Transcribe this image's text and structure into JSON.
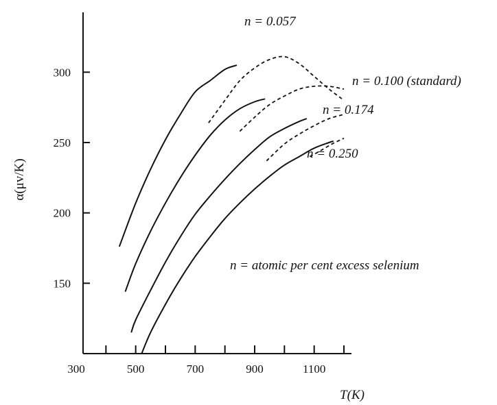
{
  "chart_data": {
    "type": "line",
    "xlabel": "T(K)",
    "ylabel": "α(μv/K)",
    "xlim": [
      300,
      1200
    ],
    "ylim": [
      100,
      325
    ],
    "x_ticks": [
      300,
      500,
      700,
      900,
      1100
    ],
    "x_minor_ticks": [
      400,
      600,
      800,
      1000,
      1200
    ],
    "y_ticks": [
      150,
      200,
      250,
      300
    ],
    "grid": false,
    "note": "n = atomic per cent excess selenium",
    "series": [
      {
        "name": "n = 0.057",
        "solid": [
          [
            445,
            176
          ],
          [
            500,
            207
          ],
          [
            550,
            231
          ],
          [
            600,
            252
          ],
          [
            650,
            270
          ],
          [
            700,
            286
          ],
          [
            750,
            294
          ],
          [
            800,
            302
          ],
          [
            840,
            305
          ]
        ],
        "dashed": [
          [
            745,
            264
          ],
          [
            800,
            280
          ],
          [
            850,
            294
          ],
          [
            900,
            303
          ],
          [
            950,
            309
          ],
          [
            1000,
            311
          ],
          [
            1050,
            306
          ],
          [
            1100,
            297
          ],
          [
            1150,
            288
          ],
          [
            1200,
            280
          ]
        ]
      },
      {
        "name": "n = 0.100 (standard)",
        "solid": [
          [
            465,
            144
          ],
          [
            500,
            164
          ],
          [
            550,
            187
          ],
          [
            600,
            207
          ],
          [
            650,
            225
          ],
          [
            700,
            241
          ],
          [
            750,
            255
          ],
          [
            800,
            266
          ],
          [
            850,
            274
          ],
          [
            900,
            279
          ],
          [
            935,
            281
          ]
        ],
        "dashed": [
          [
            850,
            258
          ],
          [
            900,
            268
          ],
          [
            950,
            277
          ],
          [
            1000,
            283
          ],
          [
            1050,
            288
          ],
          [
            1100,
            290
          ],
          [
            1150,
            290
          ],
          [
            1200,
            288
          ]
        ]
      },
      {
        "name": "n = 0.174",
        "solid": [
          [
            485,
            115
          ],
          [
            500,
            124
          ],
          [
            550,
            145
          ],
          [
            600,
            165
          ],
          [
            650,
            183
          ],
          [
            700,
            199
          ],
          [
            750,
            212
          ],
          [
            800,
            224
          ],
          [
            850,
            235
          ],
          [
            900,
            245
          ],
          [
            950,
            254
          ],
          [
            1000,
            260
          ],
          [
            1050,
            265
          ],
          [
            1075,
            267
          ]
        ],
        "dashed": [
          [
            940,
            237
          ],
          [
            1000,
            249
          ],
          [
            1050,
            256
          ],
          [
            1100,
            262
          ],
          [
            1150,
            267
          ],
          [
            1200,
            270
          ]
        ]
      },
      {
        "name": "n = 0.250",
        "solid": [
          [
            520,
            100
          ],
          [
            550,
            115
          ],
          [
            600,
            135
          ],
          [
            650,
            153
          ],
          [
            700,
            169
          ],
          [
            750,
            183
          ],
          [
            800,
            196
          ],
          [
            850,
            207
          ],
          [
            900,
            217
          ],
          [
            950,
            226
          ],
          [
            1000,
            234
          ],
          [
            1050,
            240
          ],
          [
            1100,
            246
          ],
          [
            1150,
            250
          ],
          [
            1165,
            251
          ]
        ],
        "dashed": [
          [
            1085,
            240
          ],
          [
            1120,
            244
          ],
          [
            1160,
            249
          ],
          [
            1200,
            253
          ]
        ]
      }
    ],
    "labels": {
      "n057": "n = 0.057",
      "n100": "n = 0.100 (standard)",
      "n174": "n = 0.174",
      "n250": "n = 0.250",
      "note": "n = atomic per cent excess selenium"
    }
  }
}
